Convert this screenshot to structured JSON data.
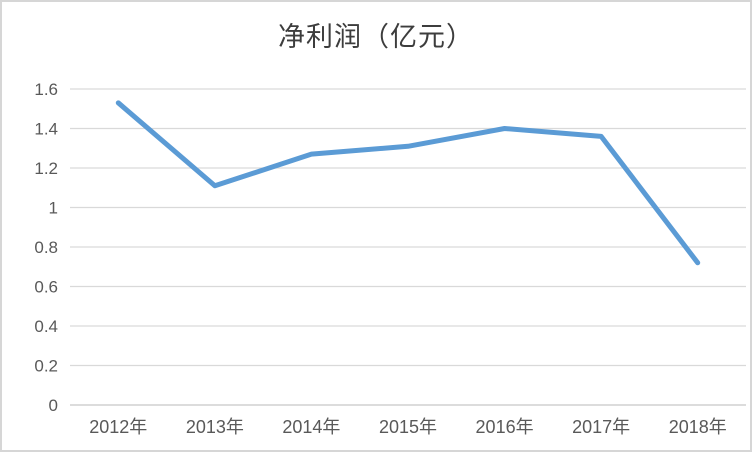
{
  "chart_data": {
    "type": "line",
    "title": "净利润（亿元）",
    "categories": [
      "2012年",
      "2013年",
      "2014年",
      "2015年",
      "2016年",
      "2017年",
      "2018年"
    ],
    "series": [
      {
        "name": "净利润",
        "values": [
          1.53,
          1.11,
          1.27,
          1.31,
          1.4,
          1.36,
          0.72
        ]
      }
    ],
    "xlabel": "",
    "ylabel": "",
    "ylim": [
      0,
      1.6
    ],
    "ytick_labels": [
      "0",
      "0.2",
      "0.4",
      "0.6",
      "0.8",
      "1",
      "1.2",
      "1.4",
      "1.6"
    ],
    "grid": true,
    "legend_position": "none",
    "colors": {
      "line": "#5b9bd5",
      "gridline": "#d9d9d9",
      "baseline": "#c6c6c6",
      "tick_label": "#595959",
      "title": "#3d3d3d",
      "background": "#ffffff",
      "frame_border": "#d6d6d6"
    }
  }
}
